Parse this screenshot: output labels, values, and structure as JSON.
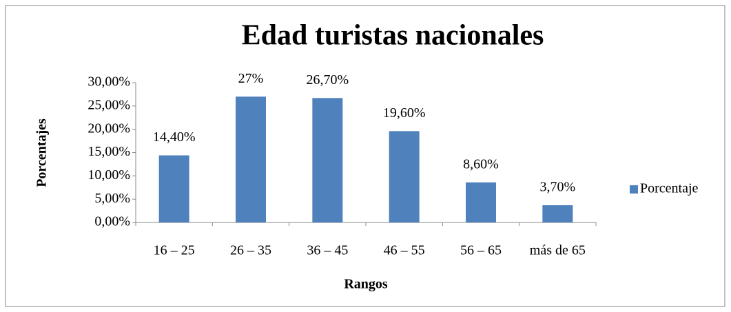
{
  "chart_data": {
    "type": "bar",
    "title": "Edad turistas nacionales",
    "x_label": "Rangos",
    "y_label": "Porcentajes",
    "categories": [
      "16 – 25",
      "26 – 35",
      "36 – 45",
      "46 – 55",
      "56 – 65",
      "más de 65"
    ],
    "series": [
      {
        "name": "Porcentaje",
        "color": "#4f81bd",
        "values": [
          14.4,
          27,
          26.7,
          19.6,
          8.6,
          3.7
        ],
        "value_labels": [
          "14,40%",
          "27%",
          "26,70%",
          "19,60%",
          "8,60%",
          "3,70%"
        ]
      }
    ],
    "ylim": [
      0,
      30
    ],
    "yticks": [
      {
        "value": 0,
        "label": "0,00%"
      },
      {
        "value": 5,
        "label": "5,00%"
      },
      {
        "value": 10,
        "label": "10,00%"
      },
      {
        "value": 15,
        "label": "15,00%"
      },
      {
        "value": 20,
        "label": "20,00%"
      },
      {
        "value": 25,
        "label": "25,00%"
      },
      {
        "value": 30,
        "label": "30,00%"
      }
    ],
    "grid": false,
    "legend": "right"
  }
}
